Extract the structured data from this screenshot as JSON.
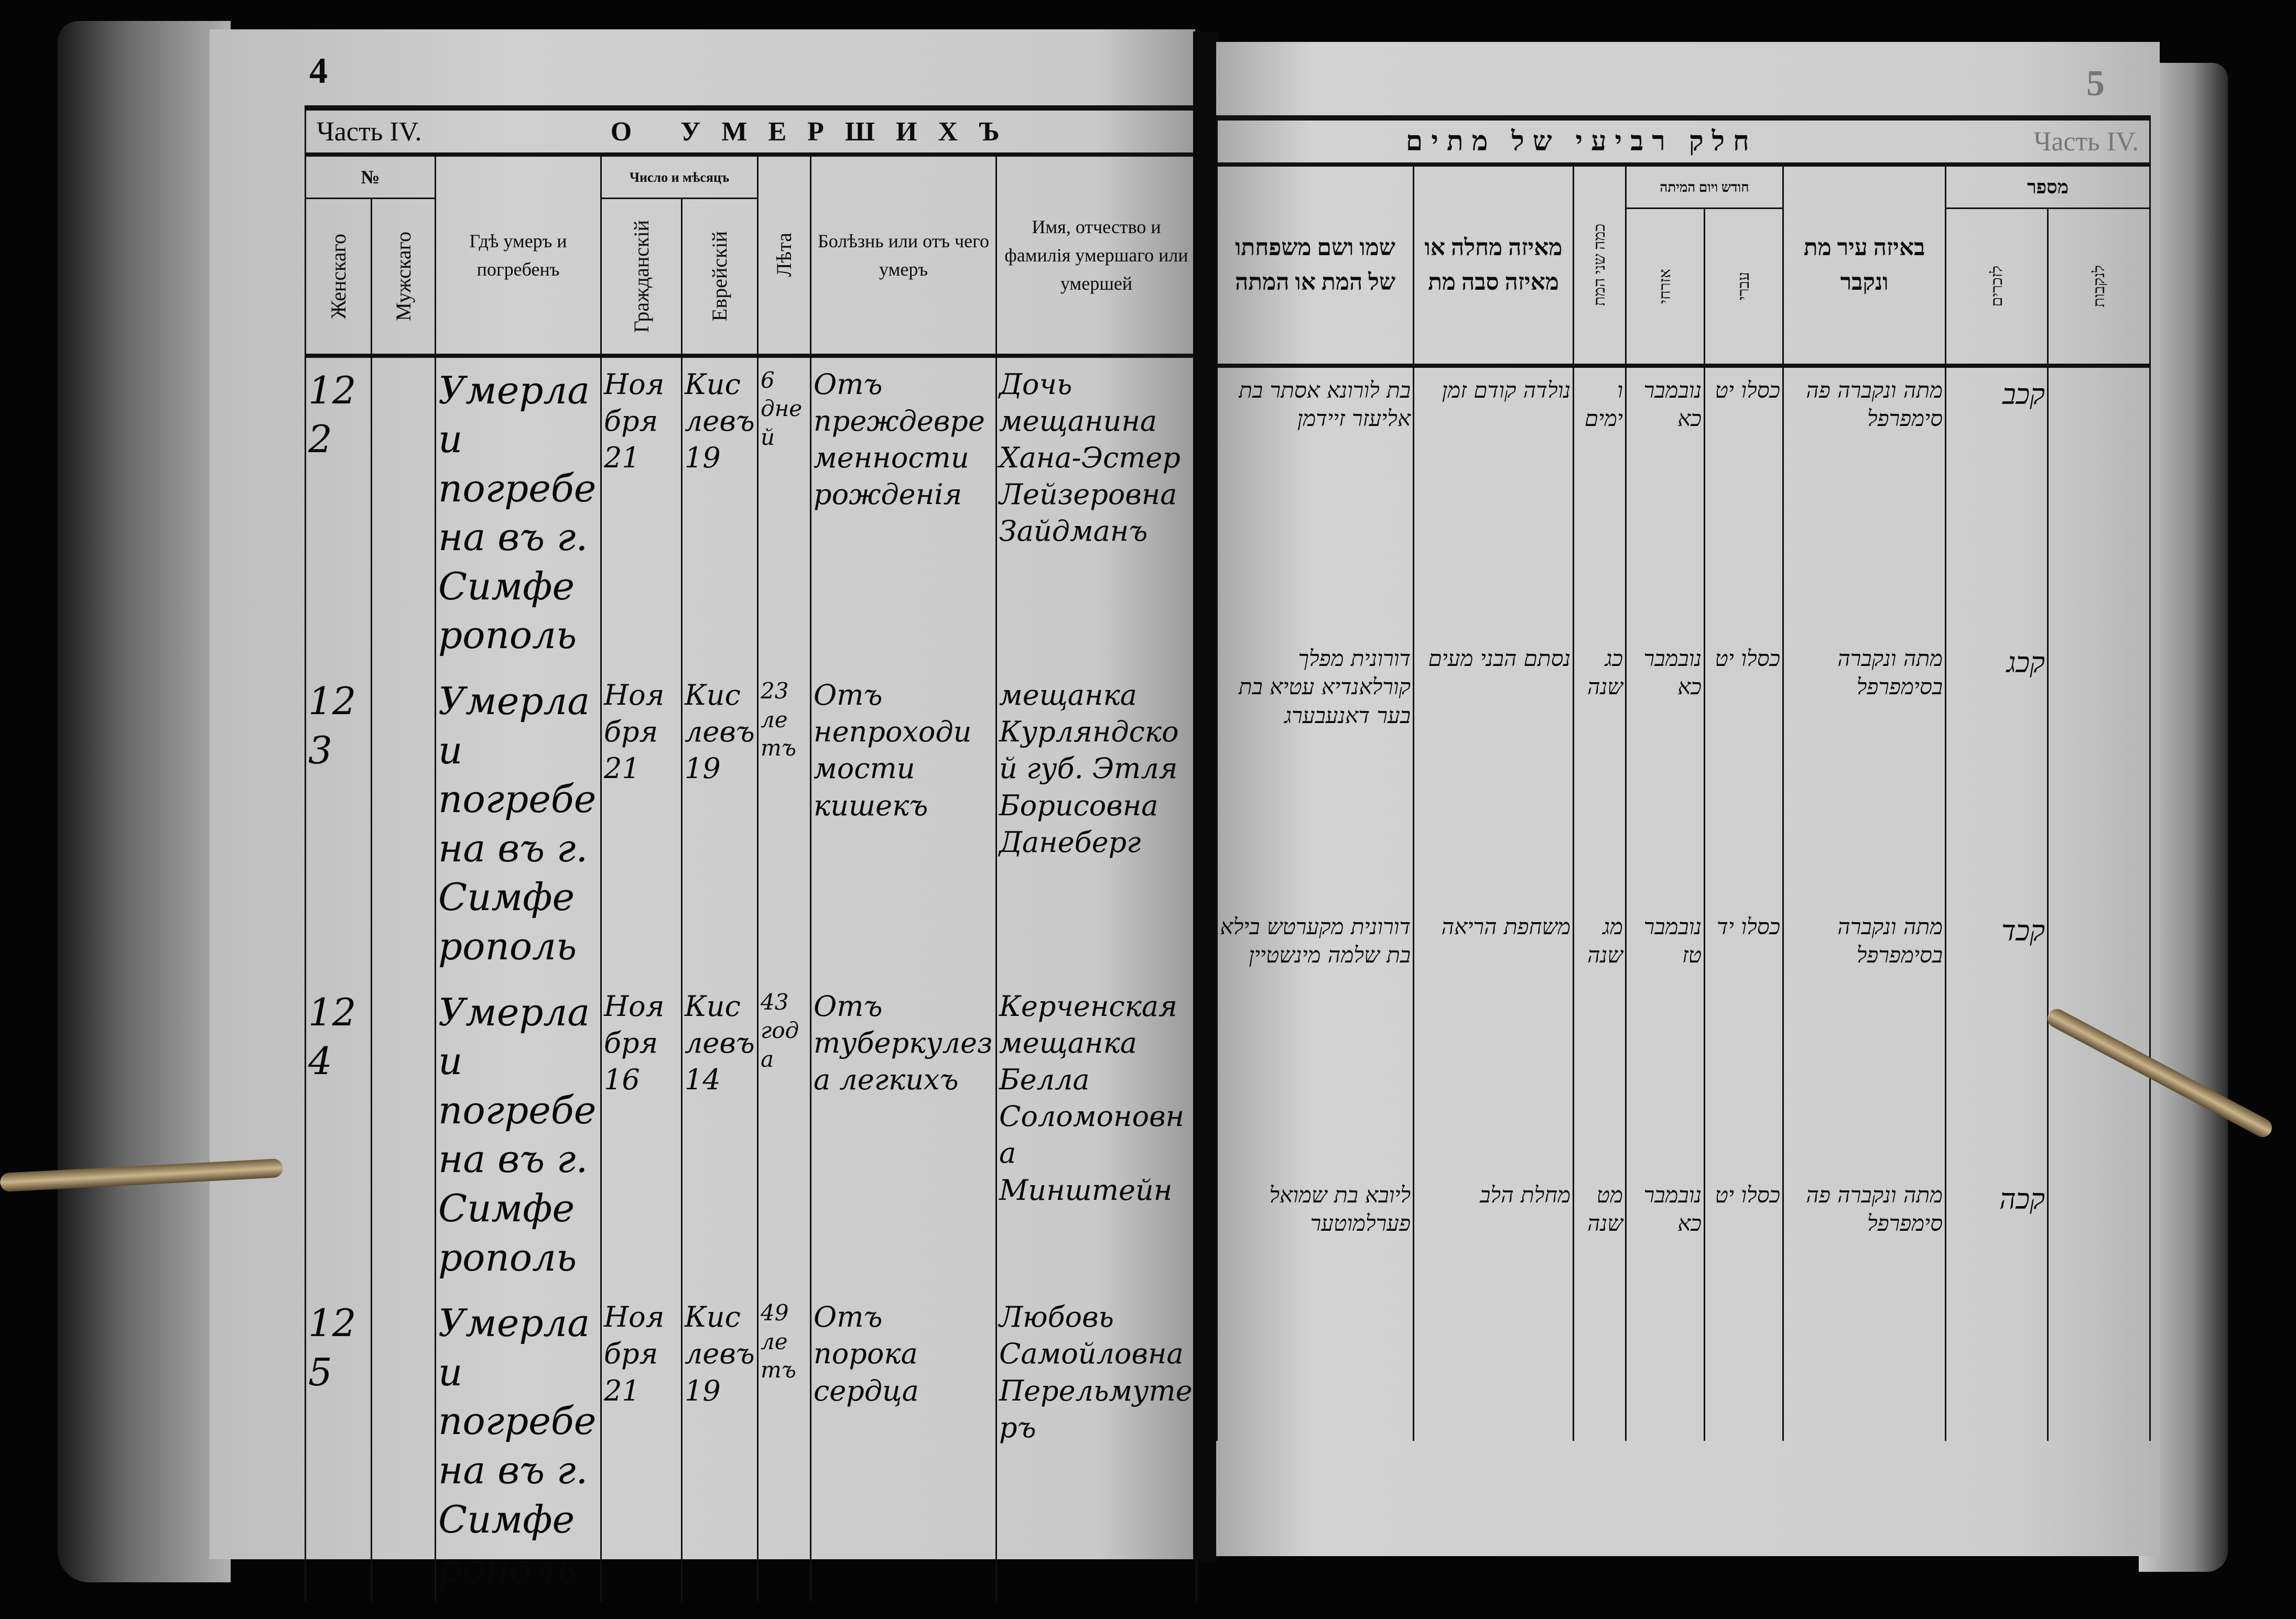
{
  "left_page": {
    "page_number": "4",
    "part": "Часть IV.",
    "title": "О УМЕРШИХЪ",
    "headers": {
      "number": "№",
      "female": "Женскаго",
      "male": "Мужскаго",
      "place": "Гдѣ умеръ и погребенъ",
      "date_group": "Число и мѣсяцъ",
      "civil": "Гражданскій",
      "jewish": "Еврейскій",
      "age": "Лѣта",
      "cause": "Болѣзнь или отъ чего умеръ",
      "name": "Имя, отчество и фамилія умершаго или умершей"
    },
    "entries": [
      {
        "number": "122",
        "place": "Умерла и погребена въ г. Симферополь",
        "civil": "Ноября 21",
        "jewish": "Кислевъ 19",
        "age": "6 дней",
        "cause": "Отъ преждевременности рожденія",
        "name": "Дочь мещанина Хана-Эстер Лейзеровна Зайдманъ"
      },
      {
        "number": "123",
        "place": "Умерла и погребена въ г. Симферополь",
        "civil": "Ноября 21",
        "jewish": "Кислевъ 19",
        "age": "23 летъ",
        "cause": "Отъ непроходимости кишекъ",
        "name": "мещанка Курляндской губ. Этля Борисовна Данеберг"
      },
      {
        "number": "124",
        "place": "Умерла и погребена въ г. Симферополь",
        "civil": "Ноября 16",
        "jewish": "Кислевъ 14",
        "age": "43 года",
        "cause": "Отъ туберкулеза легкихъ",
        "name": "Керченская мещанка Белла Соломоновна Минштейн"
      },
      {
        "number": "125",
        "place": "Умерла и погребена въ г. Симферополь",
        "civil": "Ноября 21",
        "jewish": "Кислевъ 19",
        "age": "49 летъ",
        "cause": "Отъ порока сердца",
        "name": "Любовь Самойловна Перельмутеръ"
      }
    ]
  },
  "right_page": {
    "page_number": "5",
    "part": "Часть IV.",
    "title": "חלק רביעי של מתים",
    "headers": {
      "name": "שמו ושם משפחתו של המת או המתה",
      "cause": "מאיזה מחלה או מאיזה סבה מת",
      "age": "כמה שני המת",
      "date_group": "חודש ויום המיתה",
      "jewish": "עברי",
      "civil": "אזרחי",
      "place": "באיזה עיר מת ונקבר",
      "number_group": "מספר",
      "female": "לנקבות",
      "male": "לזכרים"
    },
    "entries": [
      {
        "number": "קכב",
        "place": "מתה ונקברה פה סימפרפל",
        "civil": "נובמבר כא",
        "jewish": "כסלו יט",
        "age": "ו ימים",
        "cause": "נולדה קודם זמן",
        "name": "בת לורונא אסתר בת אליעזר זיידמן"
      },
      {
        "number": "קכג",
        "place": "מתה ונקברה בסימפרפל",
        "civil": "נובמבר כא",
        "jewish": "כסלו יט",
        "age": "כג שנה",
        "cause": "נסתם הבני מעים",
        "name": "דורונית מפלך קורלאנדיא עטיא בת בער דאנעבערג"
      },
      {
        "number": "קכד",
        "place": "מתה ונקברה בסימפרפל",
        "civil": "נובמבר טז",
        "jewish": "כסלו יד",
        "age": "מג שנה",
        "cause": "משחפת הריאה",
        "name": "דורונית מקערטש בילא בת שלמה מינשטיין"
      },
      {
        "number": "קכה",
        "place": "מתה ונקברה פה סימפרפל",
        "civil": "נובמבר כא",
        "jewish": "כסלו יט",
        "age": "מט שנה",
        "cause": "מחלת הלב",
        "name": "ליובא בת שמואל פערלמוטער"
      }
    ]
  }
}
